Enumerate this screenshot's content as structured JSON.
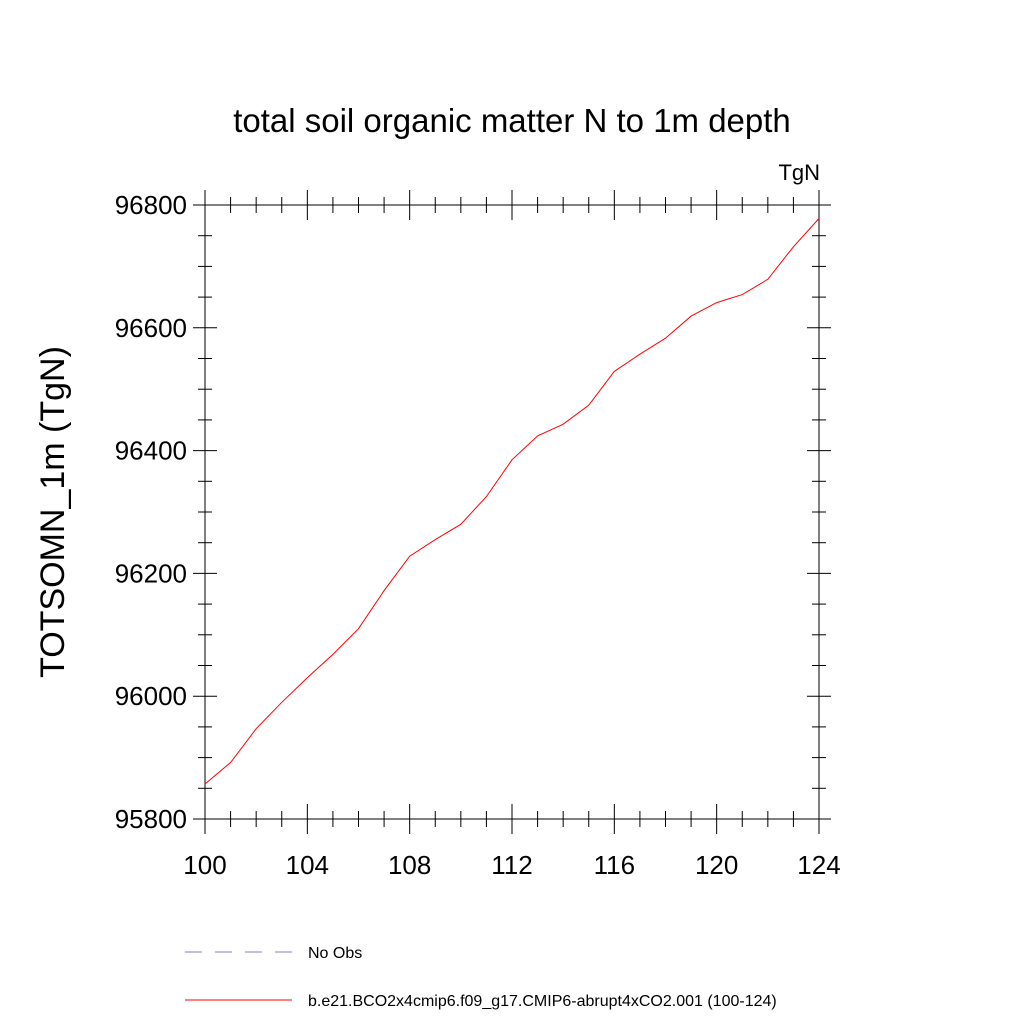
{
  "chart_data": {
    "type": "line",
    "title": "total soil organic matter N to 1m depth",
    "units_label": "TgN",
    "xlabel": "",
    "ylabel": "TOTSOMN_1m  (TgN)",
    "xlim": [
      100,
      124
    ],
    "ylim": [
      95800,
      96800
    ],
    "x_ticks": [
      "100",
      "104",
      "108",
      "112",
      "116",
      "120",
      "124"
    ],
    "y_ticks": [
      "95800",
      "96000",
      "96200",
      "96400",
      "96600",
      "96800"
    ],
    "series": [
      {
        "name": "b.e21.BCO2x4cmip6.f09_g17.CMIP6-abrupt4xCO2.001 (100-124)",
        "color": "#ff0000",
        "x": [
          100,
          101,
          102,
          103,
          104,
          105,
          106,
          107,
          108,
          109,
          110,
          111,
          112,
          113,
          114,
          115,
          116,
          117,
          118,
          119,
          120,
          121,
          122,
          123,
          124
        ],
        "values": [
          95857,
          95892,
          95947,
          95990,
          96030,
          96068,
          96110,
          96172,
          96228,
          96255,
          96280,
          96325,
          96385,
          96424,
          96443,
          96474,
          96529,
          96557,
          96583,
          96619,
          96641,
          96654,
          96679,
          96732,
          96778
        ]
      }
    ],
    "legend": [
      {
        "label": "No Obs",
        "color": "#8080c0",
        "style": "dashed"
      },
      {
        "label": "b.e21.BCO2x4cmip6.f09_g17.CMIP6-abrupt4xCO2.001 (100-124)",
        "color": "#ff0000",
        "style": "solid"
      }
    ]
  }
}
